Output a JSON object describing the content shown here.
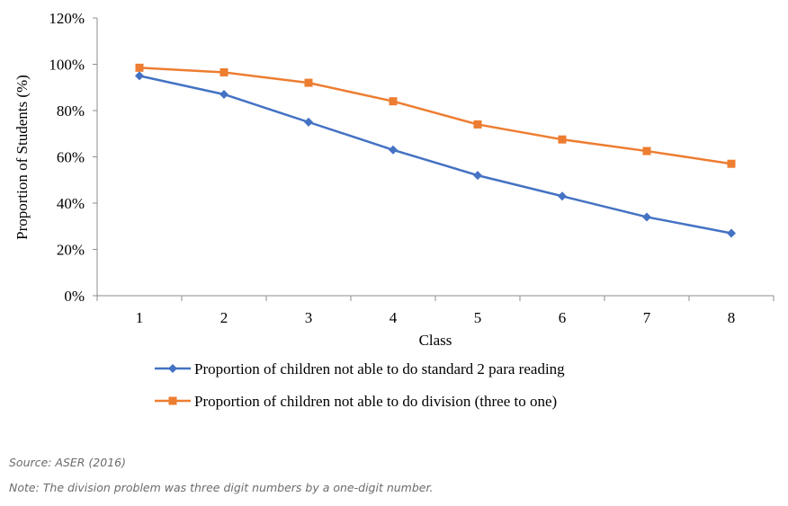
{
  "chart_data": {
    "type": "line",
    "categories": [
      "1",
      "2",
      "3",
      "4",
      "5",
      "6",
      "7",
      "8"
    ],
    "xlabel": "Class",
    "ylabel": "Proportion of Students (%)",
    "ylim": [
      0,
      120
    ],
    "yticks": [
      "0%",
      "20%",
      "40%",
      "60%",
      "80%",
      "100%",
      "120%"
    ],
    "grid": false,
    "legend_position": "bottom",
    "series": [
      {
        "name": "Proportion of children not able to do standard 2 para reading",
        "values": [
          95,
          87,
          75,
          63,
          52,
          43,
          34,
          27
        ],
        "color": "#4472C4",
        "marker": "diamond"
      },
      {
        "name": "Proportion of children not able to do division (three to one)",
        "values": [
          98.5,
          96.5,
          92,
          84,
          74,
          67.5,
          62.5,
          57
        ],
        "color": "#ED7D31",
        "marker": "square"
      }
    ]
  },
  "notes": {
    "source": "Source: ASER (2016)",
    "note": "Note: The division problem was three digit numbers by a one-digit number."
  }
}
